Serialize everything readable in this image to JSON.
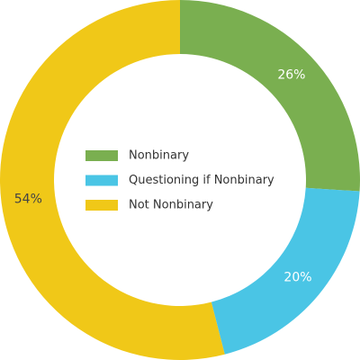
{
  "chart_data": {
    "type": "donut",
    "categories": [
      "Nonbinary",
      "Questioning if Nonbinary",
      "Not Nonbinary"
    ],
    "values": [
      26,
      20,
      54
    ],
    "value_labels": [
      "26%",
      "20%",
      "54%"
    ],
    "colors": [
      "#7aaf50",
      "#4ac5e5",
      "#f0c818"
    ],
    "legend": "center"
  }
}
